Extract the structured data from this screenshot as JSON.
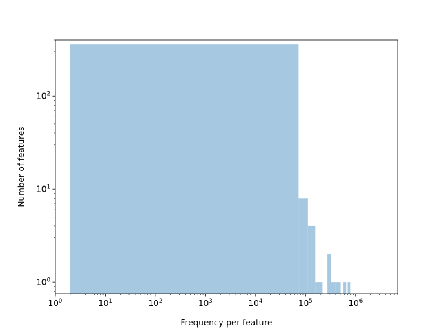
{
  "chart_data": {
    "type": "bar",
    "title": "",
    "xlabel": "Frequency per feature",
    "ylabel": "Number of features",
    "xscale": "log",
    "yscale": "log",
    "xlim": [
      1,
      7000000
    ],
    "ylim": [
      0.75,
      400
    ],
    "grid": false,
    "color": "#a6c8e0",
    "x_ticks": [
      {
        "value": 1,
        "base": "10",
        "exp": "0"
      },
      {
        "value": 10,
        "base": "10",
        "exp": "1"
      },
      {
        "value": 100,
        "base": "10",
        "exp": "2"
      },
      {
        "value": 1000,
        "base": "10",
        "exp": "3"
      },
      {
        "value": 10000,
        "base": "10",
        "exp": "4"
      },
      {
        "value": 100000,
        "base": "10",
        "exp": "5"
      },
      {
        "value": 1000000,
        "base": "10",
        "exp": "6"
      }
    ],
    "y_ticks": [
      {
        "value": 1,
        "base": "10",
        "exp": "0"
      },
      {
        "value": 10,
        "base": "10",
        "exp": "1"
      },
      {
        "value": 100,
        "base": "10",
        "exp": "2"
      }
    ],
    "bins": [
      {
        "x0": 2,
        "x1": 73000,
        "count": 360
      },
      {
        "x0": 73000,
        "x1": 112000,
        "count": 8
      },
      {
        "x0": 112000,
        "x1": 156000,
        "count": 4
      },
      {
        "x0": 156000,
        "x1": 215000,
        "count": 1
      },
      {
        "x0": 275000,
        "x1": 330000,
        "count": 2
      },
      {
        "x0": 330000,
        "x1": 390000,
        "count": 1
      },
      {
        "x0": 390000,
        "x1": 510000,
        "count": 1
      },
      {
        "x0": 570000,
        "x1": 650000,
        "count": 1
      },
      {
        "x0": 700000,
        "x1": 790000,
        "count": 1
      }
    ]
  }
}
